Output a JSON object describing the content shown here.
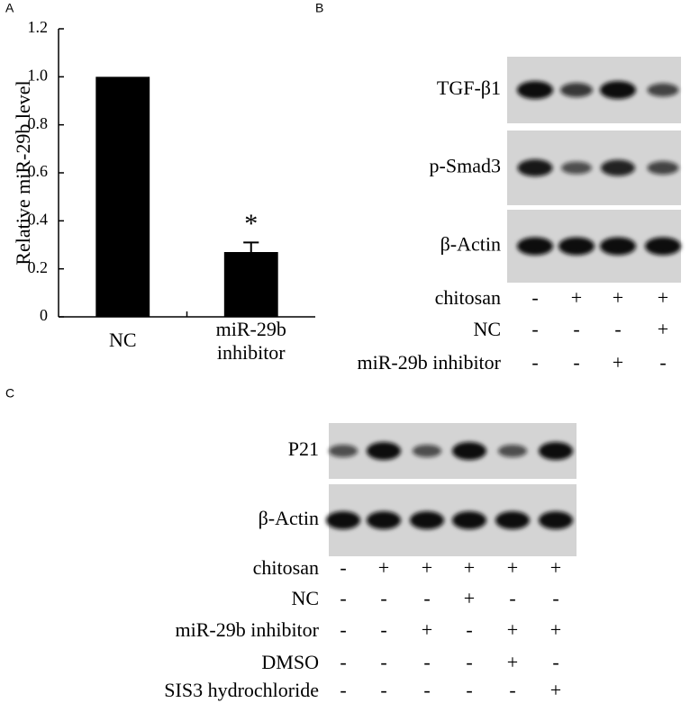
{
  "chart_data": {
    "type": "bar",
    "ylabel": "Relative miR-29b level",
    "categories": [
      "NC",
      "miR-29b inhibitor"
    ],
    "values": [
      1.0,
      0.27
    ],
    "errors": [
      null,
      0.04
    ],
    "annotation": "*",
    "color": "#000000",
    "ylim": [
      0,
      1.2
    ],
    "yticks": [
      0,
      0.2,
      0.4,
      0.6,
      0.8,
      {
        "value": 1,
        "label": "1.0"
      },
      1.2
    ]
  },
  "panel_labels": [
    "A",
    "B",
    "C"
  ],
  "panel_b": {
    "blots": [
      "TGF-β1",
      "p-Smad3",
      "β-Actin"
    ],
    "conditions": [
      {
        "label": "chitosan",
        "signs": [
          "-",
          "+",
          "+",
          "+"
        ]
      },
      {
        "label": "NC",
        "signs": [
          "-",
          "-",
          "-",
          "+"
        ]
      },
      {
        "label": "miR-29b inhibitor",
        "signs": [
          "-",
          "-",
          "+",
          "-"
        ]
      }
    ]
  },
  "panel_c": {
    "blots": [
      "P21",
      "β-Actin"
    ],
    "conditions": [
      {
        "label": "chitosan",
        "signs": [
          "-",
          "+",
          "+",
          "+",
          "+",
          "+"
        ]
      },
      {
        "label": "NC",
        "signs": [
          "-",
          "-",
          "-",
          "+",
          "-",
          "-"
        ]
      },
      {
        "label": "miR-29b inhibitor",
        "signs": [
          "-",
          "-",
          "+",
          "-",
          "+",
          "+"
        ]
      },
      {
        "label": "DMSO",
        "signs": [
          "-",
          "-",
          "-",
          "-",
          "+",
          "-"
        ]
      },
      {
        "label": "SIS3 hydrochloride",
        "signs": [
          "-",
          "-",
          "-",
          "-",
          "-",
          "+"
        ]
      }
    ]
  }
}
